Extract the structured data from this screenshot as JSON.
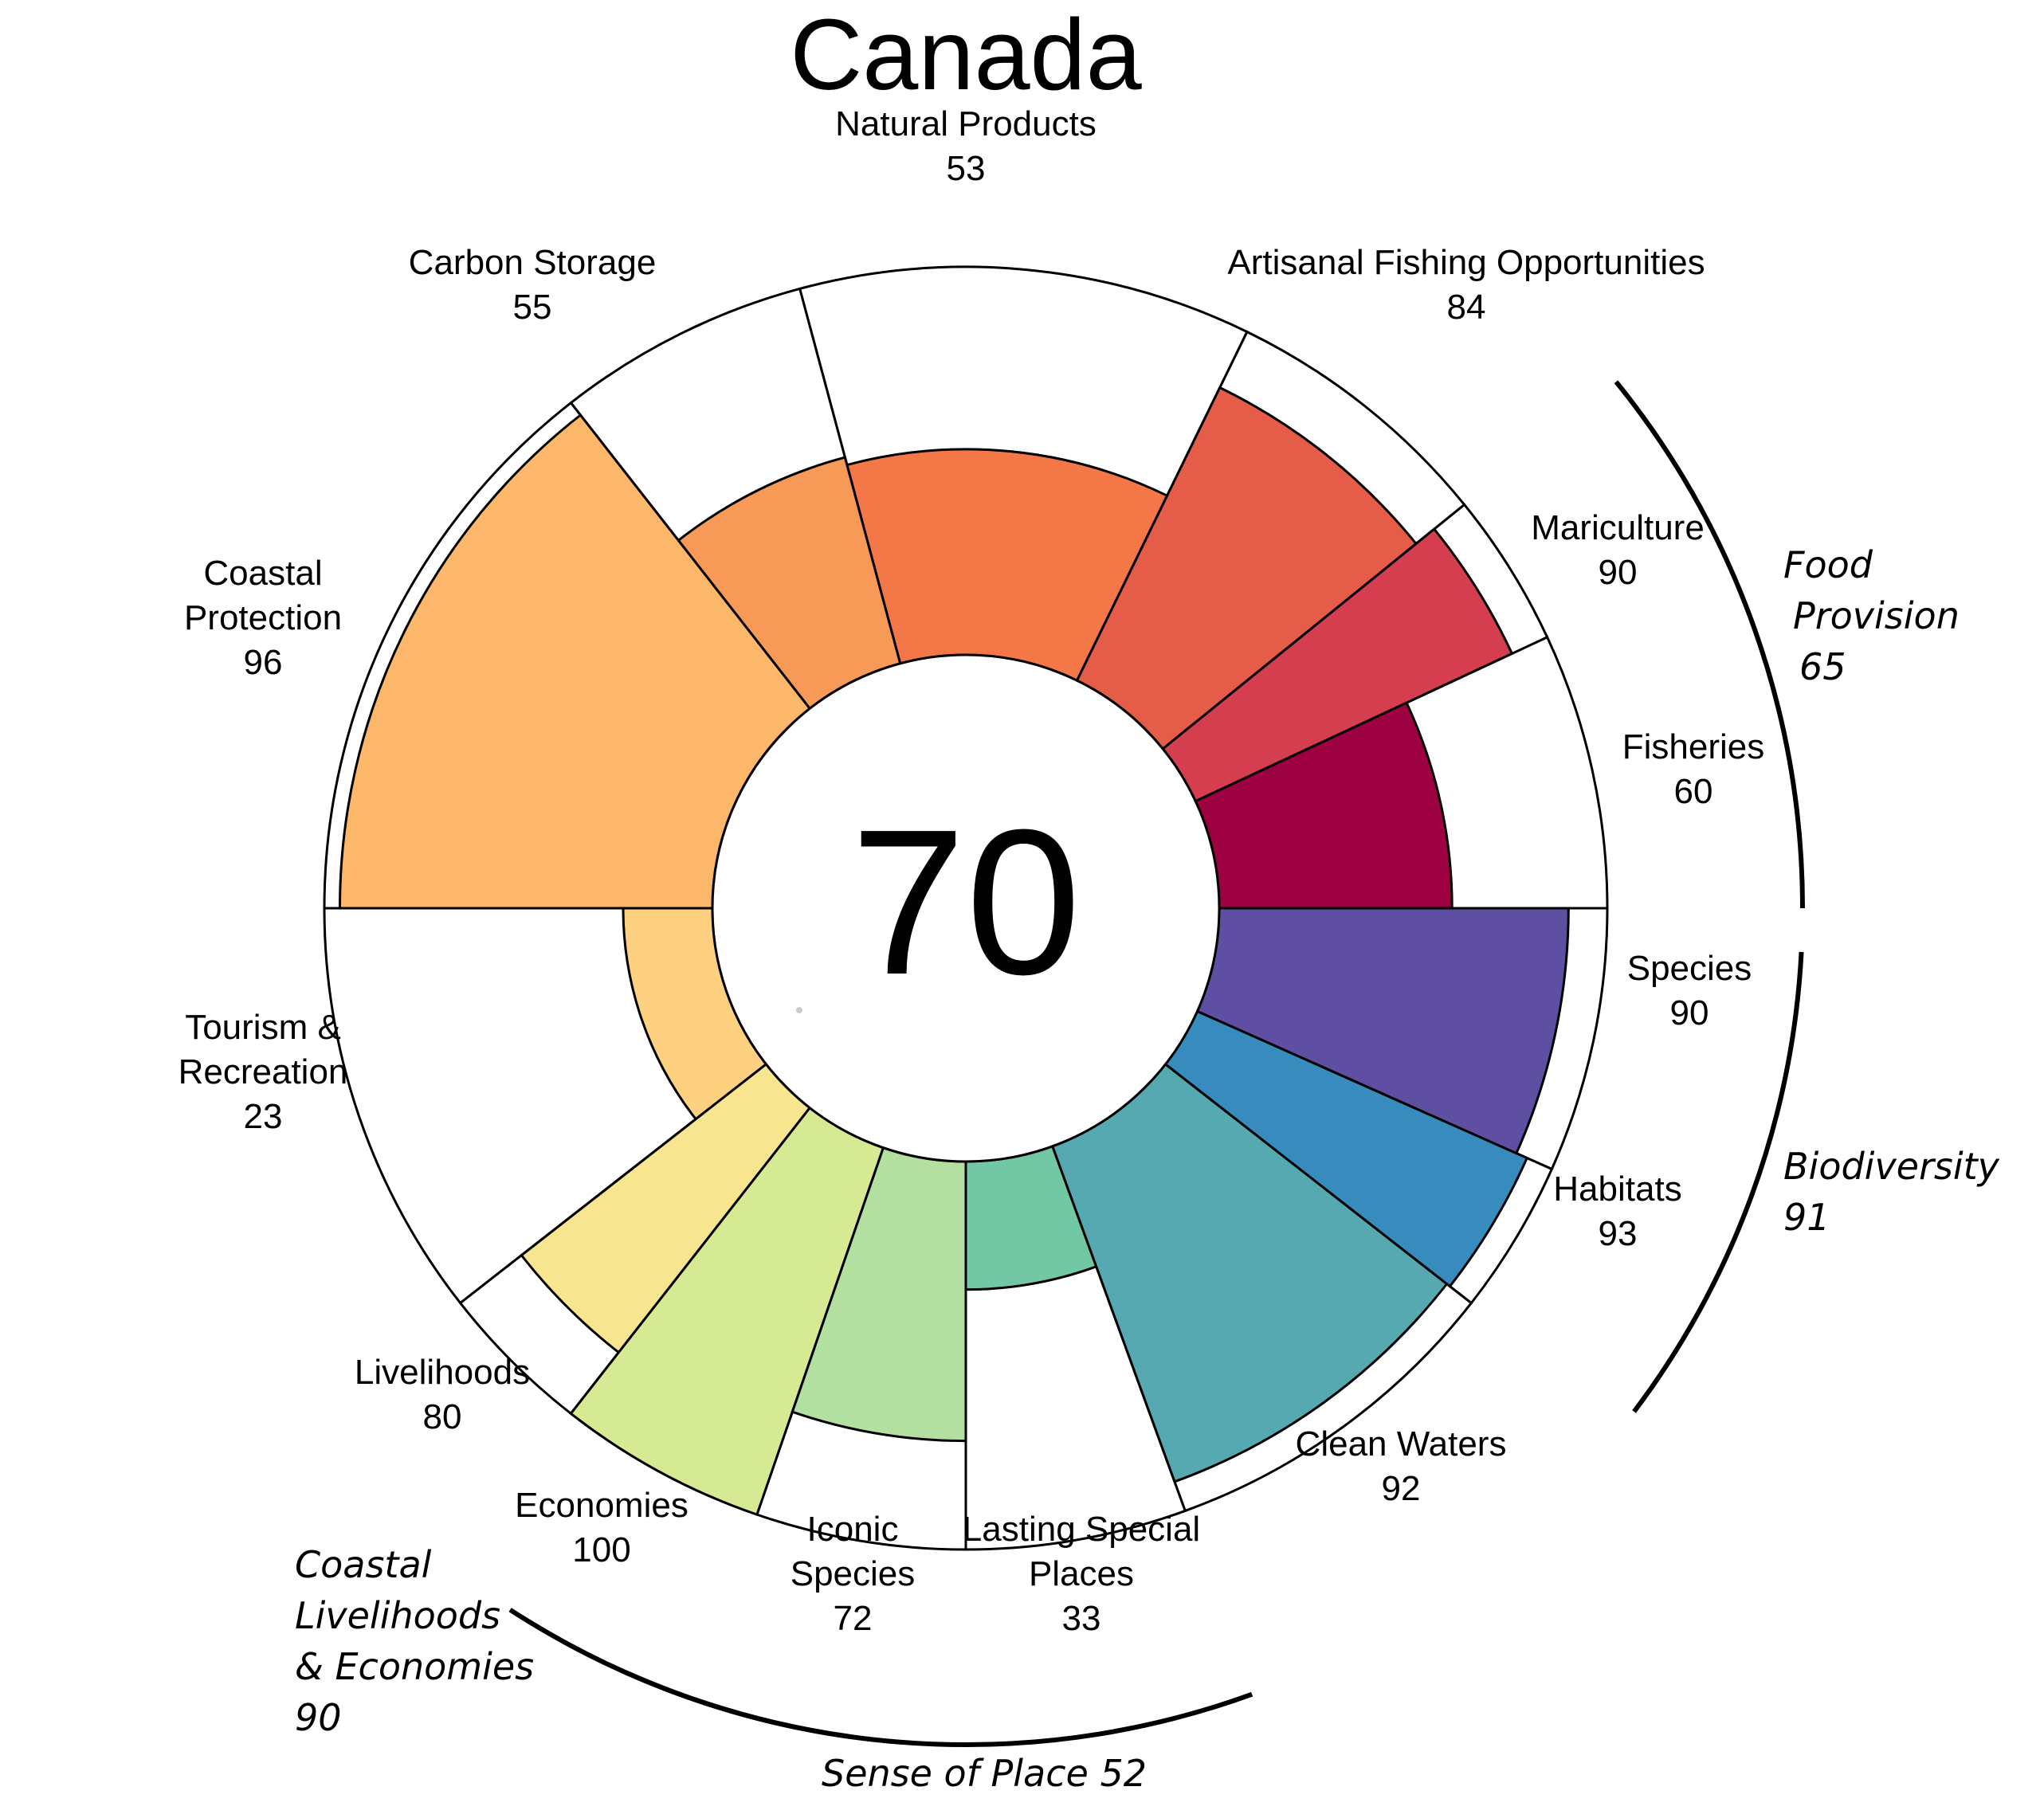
{
  "title": "Canada",
  "center_score": "70",
  "chart_data": {
    "type": "polar-bar",
    "title": "Canada",
    "overall_score": 70,
    "range": [
      0,
      100
    ],
    "goals": [
      {
        "name": "Fisheries",
        "label_lines": [
          "Fisheries"
        ],
        "value": 60,
        "color": "#9E0142"
      },
      {
        "name": "Mariculture",
        "label_lines": [
          "Mariculture"
        ],
        "value": 90,
        "color": "#D53E4F"
      },
      {
        "name": "Artisanal Fishing Opportunities",
        "label_lines": [
          "Artisanal Fishing Opportunities"
        ],
        "value": 84,
        "color": "#E55C49"
      },
      {
        "name": "Natural Products",
        "label_lines": [
          "Natural Products"
        ],
        "value": 53,
        "color": "#F47748"
      },
      {
        "name": "Carbon Storage",
        "label_lines": [
          "Carbon Storage"
        ],
        "value": 55,
        "color": "#F89A57"
      },
      {
        "name": "Coastal Protection",
        "label_lines": [
          "Coastal",
          "Protection"
        ],
        "value": 96,
        "color": "#FCB76A"
      },
      {
        "name": "Tourism & Recreation",
        "label_lines": [
          "Tourism &",
          "Recreation"
        ],
        "value": 23,
        "color": "#FDD17F"
      },
      {
        "name": "Livelihoods",
        "label_lines": [
          "Livelihoods"
        ],
        "value": 80,
        "color": "#F7E58F"
      },
      {
        "name": "Economies",
        "label_lines": [
          "Economies"
        ],
        "value": 100,
        "color": "#D6EA93"
      },
      {
        "name": "Iconic Species",
        "label_lines": [
          "Iconic",
          "Species"
        ],
        "value": 72,
        "color": "#B3DFA1"
      },
      {
        "name": "Lasting Special Places",
        "label_lines": [
          "Lasting Special",
          "Places"
        ],
        "value": 33,
        "color": "#72C7A4"
      },
      {
        "name": "Clean Waters",
        "label_lines": [
          "Clean Waters"
        ],
        "value": 92,
        "color": "#56A9B0"
      },
      {
        "name": "Habitats",
        "label_lines": [
          "Habitats"
        ],
        "value": 93,
        "color": "#378BBD"
      },
      {
        "name": "Species",
        "label_lines": [
          "Species"
        ],
        "value": 90,
        "color": "#5E4FA2"
      }
    ],
    "groups": [
      {
        "name": "Food Provision",
        "label_lines": [
          "Food",
          "Provision",
          "65"
        ],
        "value": 65
      },
      {
        "name": "Biodiversity",
        "label_lines": [
          "Biodiversity",
          "91"
        ],
        "value": 91
      },
      {
        "name": "Coastal Livelihoods & Economies",
        "label_lines": [
          "Coastal",
          "Livelihoods",
          "& Economies",
          "90"
        ],
        "value": 90
      },
      {
        "name": "Sense of Place",
        "label_lines": [
          "Sense of Place 52"
        ],
        "value": 52
      }
    ]
  }
}
